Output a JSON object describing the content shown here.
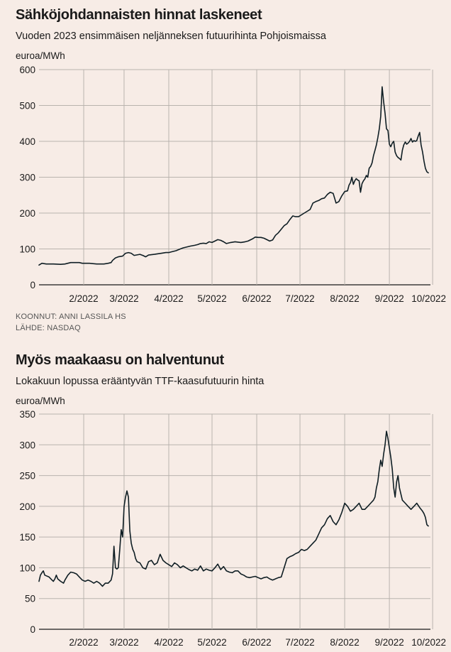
{
  "charts": [
    {
      "title": "Sähköjohdannaisten hinnat laskeneet",
      "subtitle": "Vuoden 2023 ensimmäisen neljänneksen futuurihinta Pohjoismaissa",
      "unit_label": "euroa/MWh",
      "credits": [
        "KOONNUT: ANNI LASSILA HS",
        "LÄHDE: NASDAQ"
      ]
    },
    {
      "title": "Myös maakaasu on halventunut",
      "subtitle": "Lokakuun lopussa erääntyvän TTF-kaasufutuurin hinta",
      "unit_label": "euroa/MWh",
      "credits": []
    }
  ],
  "chart_data": [
    {
      "type": "line",
      "title": "Sähköjohdannaisten hinnat laskeneet",
      "subtitle": "Vuoden 2023 ensimmäisen neljänneksen futuurihinta Pohjoismaissa",
      "ylabel": "euroa/MWh",
      "xlabel": "",
      "ylim": [
        0,
        600
      ],
      "yticks": [
        0,
        100,
        200,
        300,
        400,
        500,
        600
      ],
      "xlim": [
        0,
        270
      ],
      "xticks": [
        {
          "label": "2/2022",
          "x": 31
        },
        {
          "label": "3/2022",
          "x": 59
        },
        {
          "label": "4/2022",
          "x": 90
        },
        {
          "label": "5/2022",
          "x": 120
        },
        {
          "label": "6/2022",
          "x": 151
        },
        {
          "label": "7/2022",
          "x": 181
        },
        {
          "label": "8/2022",
          "x": 212
        },
        {
          "label": "9/2022",
          "x": 243
        },
        {
          "label": "10/2022",
          "x": 273
        }
      ],
      "grid": true,
      "series": [
        {
          "x": [
            0,
            2,
            5,
            10,
            15,
            18,
            22,
            25,
            28,
            30,
            35,
            40,
            45,
            48,
            50,
            51,
            53,
            55,
            58,
            60,
            62,
            64,
            66,
            70,
            72,
            74,
            76,
            80,
            85,
            88,
            90,
            92,
            95,
            98,
            100,
            105,
            108,
            110,
            112,
            114,
            116,
            118,
            120,
            122,
            124,
            126,
            128,
            130,
            133,
            136,
            140,
            143,
            145,
            148,
            150,
            152,
            154,
            156,
            158,
            160,
            162,
            164,
            166,
            168,
            170,
            172,
            174,
            176,
            178,
            180,
            182,
            184,
            186,
            188,
            190,
            192,
            194,
            196,
            198,
            200,
            202,
            204,
            206,
            208,
            210,
            212,
            214,
            215,
            216,
            217,
            218,
            219,
            220,
            221,
            222,
            223,
            224,
            225,
            226,
            227,
            228,
            229,
            230,
            231,
            232,
            233,
            234,
            235,
            236,
            237,
            238,
            239,
            240,
            241,
            242,
            243,
            244,
            245,
            246,
            247,
            248,
            249,
            250,
            251,
            252,
            253,
            254,
            255,
            256,
            257,
            258,
            259,
            260,
            261,
            262,
            263,
            264,
            265,
            266,
            267,
            268,
            269,
            270
          ],
          "values": [
            55,
            60,
            58,
            58,
            57,
            58,
            62,
            62,
            62,
            60,
            60,
            58,
            58,
            60,
            62,
            68,
            75,
            78,
            80,
            88,
            90,
            88,
            82,
            85,
            82,
            78,
            83,
            85,
            88,
            90,
            90,
            92,
            95,
            100,
            103,
            108,
            110,
            112,
            115,
            116,
            115,
            120,
            118,
            122,
            126,
            124,
            120,
            115,
            118,
            120,
            118,
            120,
            122,
            128,
            133,
            132,
            132,
            130,
            126,
            122,
            125,
            138,
            145,
            155,
            165,
            170,
            182,
            192,
            190,
            190,
            195,
            200,
            205,
            210,
            228,
            232,
            235,
            240,
            242,
            252,
            258,
            255,
            228,
            232,
            248,
            260,
            262,
            278,
            285,
            300,
            280,
            290,
            296,
            292,
            290,
            258,
            282,
            290,
            295,
            305,
            300,
            325,
            330,
            340,
            360,
            375,
            390,
            410,
            435,
            470,
            552,
            510,
            478,
            435,
            430,
            392,
            385,
            395,
            400,
            370,
            360,
            355,
            352,
            348,
            375,
            390,
            398,
            392,
            395,
            400,
            408,
            398,
            402,
            400,
            402,
            415,
            425,
            390,
            370,
            345,
            325,
            315,
            312
          ]
        }
      ]
    },
    {
      "type": "line",
      "title": "Myös maakaasu on halventunut",
      "subtitle": "Lokakuun lopussa erääntyvän TTF-kaasufutuurin hinta",
      "ylabel": "euroa/MWh",
      "xlabel": "",
      "ylim": [
        0,
        350
      ],
      "yticks": [
        0,
        50,
        100,
        150,
        200,
        250,
        300,
        350
      ],
      "xlim": [
        0,
        270
      ],
      "xticks": [
        {
          "label": "2/2022",
          "x": 31
        },
        {
          "label": "3/2022",
          "x": 59
        },
        {
          "label": "4/2022",
          "x": 90
        },
        {
          "label": "5/2022",
          "x": 120
        },
        {
          "label": "6/2022",
          "x": 151
        },
        {
          "label": "7/2022",
          "x": 181
        },
        {
          "label": "8/2022",
          "x": 212
        },
        {
          "label": "9/2022",
          "x": 243
        },
        {
          "label": "10/2022",
          "x": 273
        }
      ],
      "grid": true,
      "series": [
        {
          "x": [
            0,
            1,
            2,
            3,
            4,
            5,
            7,
            9,
            10,
            11,
            12,
            13,
            15,
            17,
            18,
            20,
            22,
            24,
            26,
            28,
            30,
            32,
            34,
            36,
            38,
            40,
            42,
            44,
            46,
            48,
            50,
            51,
            52,
            53,
            54,
            55,
            56,
            57,
            58,
            59,
            60,
            61,
            62,
            63,
            64,
            65,
            66,
            67,
            68,
            70,
            72,
            74,
            76,
            78,
            80,
            82,
            84,
            86,
            88,
            90,
            92,
            94,
            96,
            98,
            100,
            102,
            104,
            106,
            108,
            110,
            112,
            114,
            116,
            118,
            120,
            122,
            124,
            126,
            128,
            130,
            132,
            134,
            136,
            138,
            140,
            142,
            144,
            146,
            148,
            150,
            152,
            154,
            156,
            158,
            160,
            162,
            164,
            166,
            168,
            170,
            172,
            174,
            176,
            178,
            180,
            182,
            184,
            186,
            188,
            190,
            192,
            194,
            196,
            198,
            200,
            202,
            204,
            206,
            208,
            210,
            212,
            214,
            216,
            218,
            220,
            222,
            224,
            226,
            228,
            230,
            232,
            233,
            234,
            235,
            236,
            237,
            238,
            239,
            240,
            241,
            242,
            243,
            244,
            245,
            246,
            247,
            248,
            249,
            250,
            252,
            254,
            256,
            258,
            260,
            262,
            264,
            266,
            267,
            268,
            269,
            270
          ],
          "values": [
            78,
            88,
            92,
            95,
            88,
            87,
            85,
            80,
            78,
            82,
            88,
            82,
            78,
            75,
            80,
            88,
            93,
            92,
            90,
            85,
            80,
            78,
            80,
            78,
            75,
            78,
            75,
            70,
            75,
            75,
            80,
            90,
            135,
            100,
            98,
            100,
            130,
            162,
            150,
            200,
            215,
            225,
            215,
            160,
            140,
            130,
            125,
            115,
            110,
            108,
            100,
            98,
            110,
            112,
            105,
            108,
            122,
            112,
            108,
            105,
            102,
            108,
            105,
            100,
            103,
            100,
            97,
            95,
            98,
            96,
            103,
            95,
            98,
            96,
            95,
            100,
            106,
            97,
            102,
            95,
            93,
            92,
            95,
            95,
            90,
            88,
            85,
            84,
            85,
            86,
            84,
            82,
            84,
            85,
            82,
            80,
            82,
            84,
            85,
            100,
            115,
            118,
            120,
            123,
            125,
            130,
            128,
            130,
            135,
            140,
            145,
            155,
            165,
            170,
            180,
            185,
            175,
            170,
            178,
            190,
            205,
            200,
            192,
            195,
            200,
            205,
            195,
            195,
            200,
            205,
            210,
            215,
            230,
            240,
            260,
            275,
            265,
            285,
            300,
            322,
            310,
            295,
            280,
            260,
            230,
            215,
            240,
            250,
            230,
            210,
            205,
            200,
            195,
            200,
            205,
            198,
            192,
            188,
            182,
            170,
            168
          ]
        }
      ]
    }
  ]
}
